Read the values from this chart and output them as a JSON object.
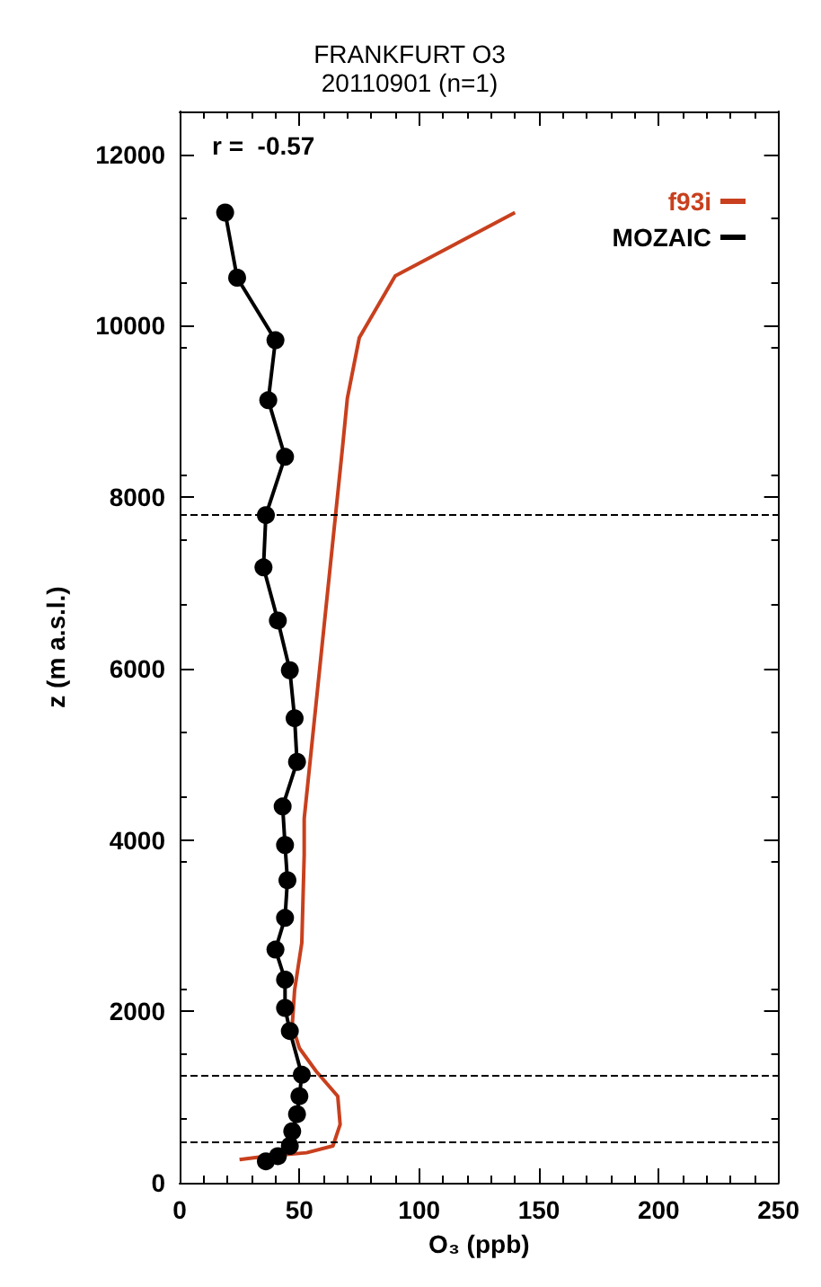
{
  "chart_data": {
    "type": "line",
    "title": "FRANKFURT O3",
    "subtitle": "20110901 (n=1)",
    "xlabel": "O₃ (ppb)",
    "ylabel": "z (m a.s.l.)",
    "annotations": [
      "r =  -0.57"
    ],
    "xlim": [
      0,
      250
    ],
    "xticks": [
      0,
      50,
      100,
      150,
      200,
      250
    ],
    "ylim": [
      0,
      12500
    ],
    "yticks": [
      0,
      2000,
      4000,
      6000,
      8000,
      10000,
      12000
    ],
    "grid": false,
    "legend": "top right",
    "series": [
      {
        "name": "f93i",
        "color": "#c8401e",
        "marker": "none",
        "x": [
          25,
          36,
          53,
          64,
          67,
          66,
          57,
          50,
          47,
          48,
          51,
          52,
          52,
          68,
          70,
          75,
          90,
          140
        ],
        "values": [
          270,
          310,
          350,
          430,
          680,
          1010,
          1300,
          1570,
          1840,
          2250,
          2800,
          3830,
          4250,
          8580,
          9150,
          9860,
          10580,
          11320
        ]
      },
      {
        "name": "MOZAIC",
        "color": "#000000",
        "marker": "circle",
        "x": [
          36,
          41,
          46,
          47,
          49,
          50,
          51,
          46,
          44,
          44,
          40,
          44,
          45,
          44,
          43,
          49,
          48,
          46,
          41,
          35,
          36,
          44,
          37,
          40,
          24,
          19
        ],
        "values": [
          250,
          310,
          430,
          600,
          800,
          1010,
          1260,
          1770,
          2040,
          2370,
          2720,
          3090,
          3530,
          3940,
          4390,
          4910,
          5420,
          5980,
          6560,
          7180,
          7790,
          8470,
          9130,
          9830,
          10560,
          11320
        ]
      }
    ],
    "ref_lines": [
      {
        "axis": "y",
        "value": 7800,
        "line_style": "dashed",
        "color": "#000000"
      },
      {
        "axis": "y",
        "value": 1250,
        "line_style": "dashed",
        "color": "#000000"
      },
      {
        "axis": "y",
        "value": 480,
        "line_style": "dashed",
        "color": "#000000"
      }
    ]
  }
}
